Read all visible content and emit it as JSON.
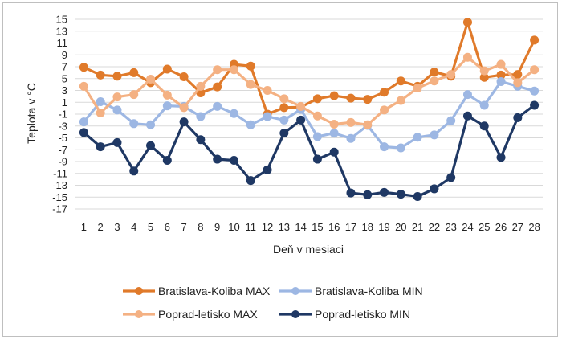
{
  "chart_data": {
    "type": "line",
    "title": "",
    "xlabel": "Deň v mesiaci",
    "ylabel": "Teplota v °C",
    "ylim": [
      -17,
      15
    ],
    "yticks": [
      15,
      13,
      11,
      9,
      7,
      5,
      3,
      1,
      -1,
      -3,
      -5,
      -7,
      -9,
      -11,
      -13,
      -15,
      -17
    ],
    "categories": [
      "1",
      "2",
      "3",
      "4",
      "5",
      "6",
      "7",
      "8",
      "9",
      "10",
      "11",
      "12",
      "13",
      "14",
      "15",
      "16",
      "17",
      "18",
      "19",
      "20",
      "21",
      "22",
      "23",
      "24",
      "25",
      "26",
      "27",
      "28"
    ],
    "grid": true,
    "legend_position": "bottom",
    "series": [
      {
        "name": "Bratislava-Koliba MAX",
        "color": "#E07A2A",
        "values": [
          6.9,
          5.6,
          5.4,
          6.0,
          4.3,
          6.6,
          5.3,
          2.6,
          3.6,
          7.4,
          7.1,
          -1.0,
          0.1,
          0.2,
          1.6,
          2.1,
          1.7,
          1.5,
          2.7,
          4.6,
          3.7,
          6.1,
          5.4,
          14.5,
          5.2,
          5.6,
          5.7,
          11.5
        ]
      },
      {
        "name": "Bratislava-Koliba MIN",
        "color": "#9DB7E3",
        "values": [
          -2.3,
          1.1,
          -0.3,
          -2.6,
          -2.8,
          0.4,
          0.3,
          -1.4,
          0.3,
          -0.9,
          -2.8,
          -1.4,
          -2.0,
          -0.2,
          -4.8,
          -4.2,
          -5.1,
          -2.9,
          -6.5,
          -6.7,
          -4.9,
          -4.5,
          -2.1,
          2.3,
          0.5,
          4.5,
          3.7,
          2.9
        ]
      },
      {
        "name": "Poprad-letisko MAX",
        "color": "#F4B183",
        "values": [
          3.7,
          -0.8,
          1.9,
          2.3,
          4.9,
          2.2,
          0.1,
          3.7,
          6.5,
          6.5,
          4.0,
          3.0,
          1.6,
          0.3,
          -1.3,
          -2.7,
          -2.4,
          -2.8,
          -0.3,
          1.3,
          3.4,
          4.6,
          5.7,
          8.6,
          6.3,
          7.4,
          4.3,
          6.5
        ]
      },
      {
        "name": "Poprad-letisko MIN",
        "color": "#1F3864",
        "values": [
          -4.1,
          -6.5,
          -5.8,
          -10.6,
          -6.3,
          -8.8,
          -2.3,
          -5.3,
          -8.6,
          -8.8,
          -12.2,
          -10.4,
          -4.2,
          -2.0,
          -8.6,
          -7.4,
          -14.3,
          -14.6,
          -14.2,
          -14.5,
          -14.9,
          -13.6,
          -11.7,
          -1.3,
          -3.0,
          -8.3,
          -1.6,
          0.5
        ]
      }
    ]
  }
}
